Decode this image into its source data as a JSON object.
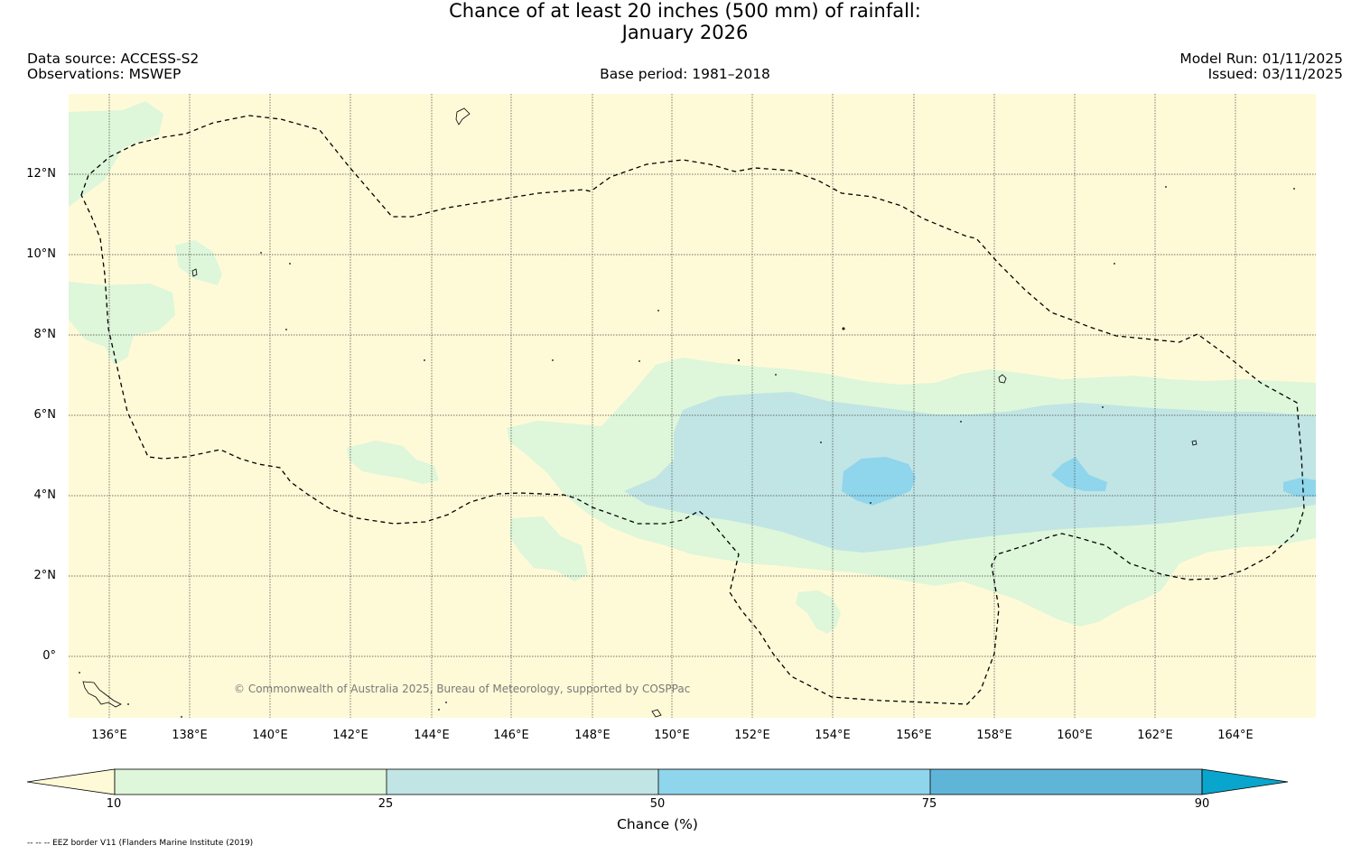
{
  "header": {
    "title_line1": "Chance of at least 20 inches (500  mm) of rainfall:",
    "title_line2": "January 2026",
    "data_source": "Data source: ACCESS-S2",
    "observations": "Observations: MSWEP",
    "base_period": "Base period: 1981–2018",
    "model_run": "Model Run: 01/11/2025",
    "issued": "Issued: 03/11/2025"
  },
  "map": {
    "lon_range": [
      135,
      166
    ],
    "lat_range": [
      -1.5,
      14
    ],
    "y_ticks": [
      "12°N",
      "10°N",
      "8°N",
      "6°N",
      "4°N",
      "2°N",
      "0°"
    ],
    "x_ticks": [
      "136°E",
      "138°E",
      "140°E",
      "142°E",
      "144°E",
      "146°E",
      "148°E",
      "150°E",
      "152°E",
      "154°E",
      "156°E",
      "158°E",
      "160°E",
      "162°E",
      "164°E"
    ],
    "copyright": "© Commonwealth of Australia 2025, Bureau of Meteorology, supported by COSPPac",
    "background_color": "#fefad7"
  },
  "colorbar": {
    "title": "Chance (%)",
    "labels": [
      "10",
      "25",
      "50",
      "75",
      "90"
    ],
    "colors": [
      "#fefad7",
      "#def6da",
      "#c0e5e4",
      "#8fd5ec",
      "#5fb5d7",
      "#0aa5cc"
    ]
  },
  "footnote": "-- -- -- EEZ border V11 (Flanders Marine Institute (2019)"
}
